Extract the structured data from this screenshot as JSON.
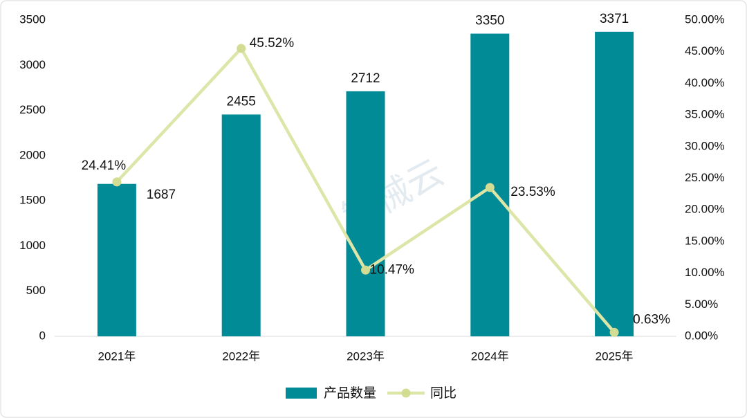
{
  "chart_data": {
    "type": "bar-line",
    "watermark": "智械云",
    "categories": [
      "2021年",
      "2022年",
      "2023年",
      "2024年",
      "2025年"
    ],
    "series": [
      {
        "name": "产品数量",
        "type": "bar",
        "color": "#008b96",
        "values": [
          1687,
          2455,
          2712,
          3350,
          3371
        ]
      },
      {
        "name": "同比",
        "type": "line",
        "axis": "y2",
        "color": "#dde5a8",
        "marker_color": "#d3dc93",
        "values": [
          24.41,
          45.52,
          10.47,
          23.53,
          0.63
        ],
        "value_labels": [
          "24.41%",
          "45.52%",
          "10.47%",
          "23.53%",
          "0.63%"
        ]
      }
    ],
    "ylim": [
      0,
      3500
    ],
    "yticks": [
      0,
      500,
      1000,
      1500,
      2000,
      2500,
      3000,
      3500
    ],
    "y2lim": [
      0,
      50
    ],
    "y2ticks": [
      {
        "value": 0,
        "label": "0.00%"
      },
      {
        "value": 5,
        "label": "5.00%"
      },
      {
        "value": 10,
        "label": "10.00%"
      },
      {
        "value": 15,
        "label": "15.00%"
      },
      {
        "value": 20,
        "label": "20.00%"
      },
      {
        "value": 25,
        "label": "25.00%"
      },
      {
        "value": 30,
        "label": "30.00%"
      },
      {
        "value": 35,
        "label": "35.00%"
      },
      {
        "value": 40,
        "label": "40.00%"
      },
      {
        "value": 45,
        "label": "45.00%"
      },
      {
        "value": 50,
        "label": "50.00%"
      }
    ],
    "legend": "bottom"
  }
}
